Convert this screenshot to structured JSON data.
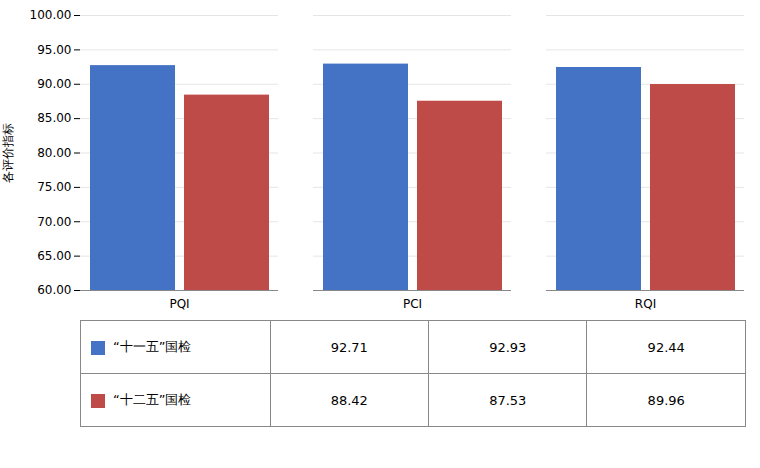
{
  "chart_data": {
    "type": "bar",
    "categories": [
      "PQI",
      "PCI",
      "RQI"
    ],
    "series": [
      {
        "name": "“十一五”国检",
        "color": "#4472C4",
        "values": [
          92.71,
          92.93,
          92.44
        ]
      },
      {
        "name": "“十二五”国检",
        "color": "#BE4B48",
        "values": [
          88.42,
          87.53,
          89.96
        ]
      }
    ],
    "ylabel": "各评价指标",
    "ylim": [
      60.0,
      100.0
    ],
    "yticks": [
      {
        "value": 60.0,
        "label": "60.00"
      },
      {
        "value": 65.0,
        "label": "65.00"
      },
      {
        "value": 70.0,
        "label": "70.00"
      },
      {
        "value": 75.0,
        "label": "75.00"
      },
      {
        "value": 80.0,
        "label": "80.00"
      },
      {
        "value": 85.0,
        "label": "85.00"
      },
      {
        "value": 90.0,
        "label": "90.00"
      },
      {
        "value": 95.0,
        "label": "95.00"
      },
      {
        "value": 100.0,
        "label": "100.00"
      }
    ],
    "grid": true,
    "legend": "bottom"
  }
}
